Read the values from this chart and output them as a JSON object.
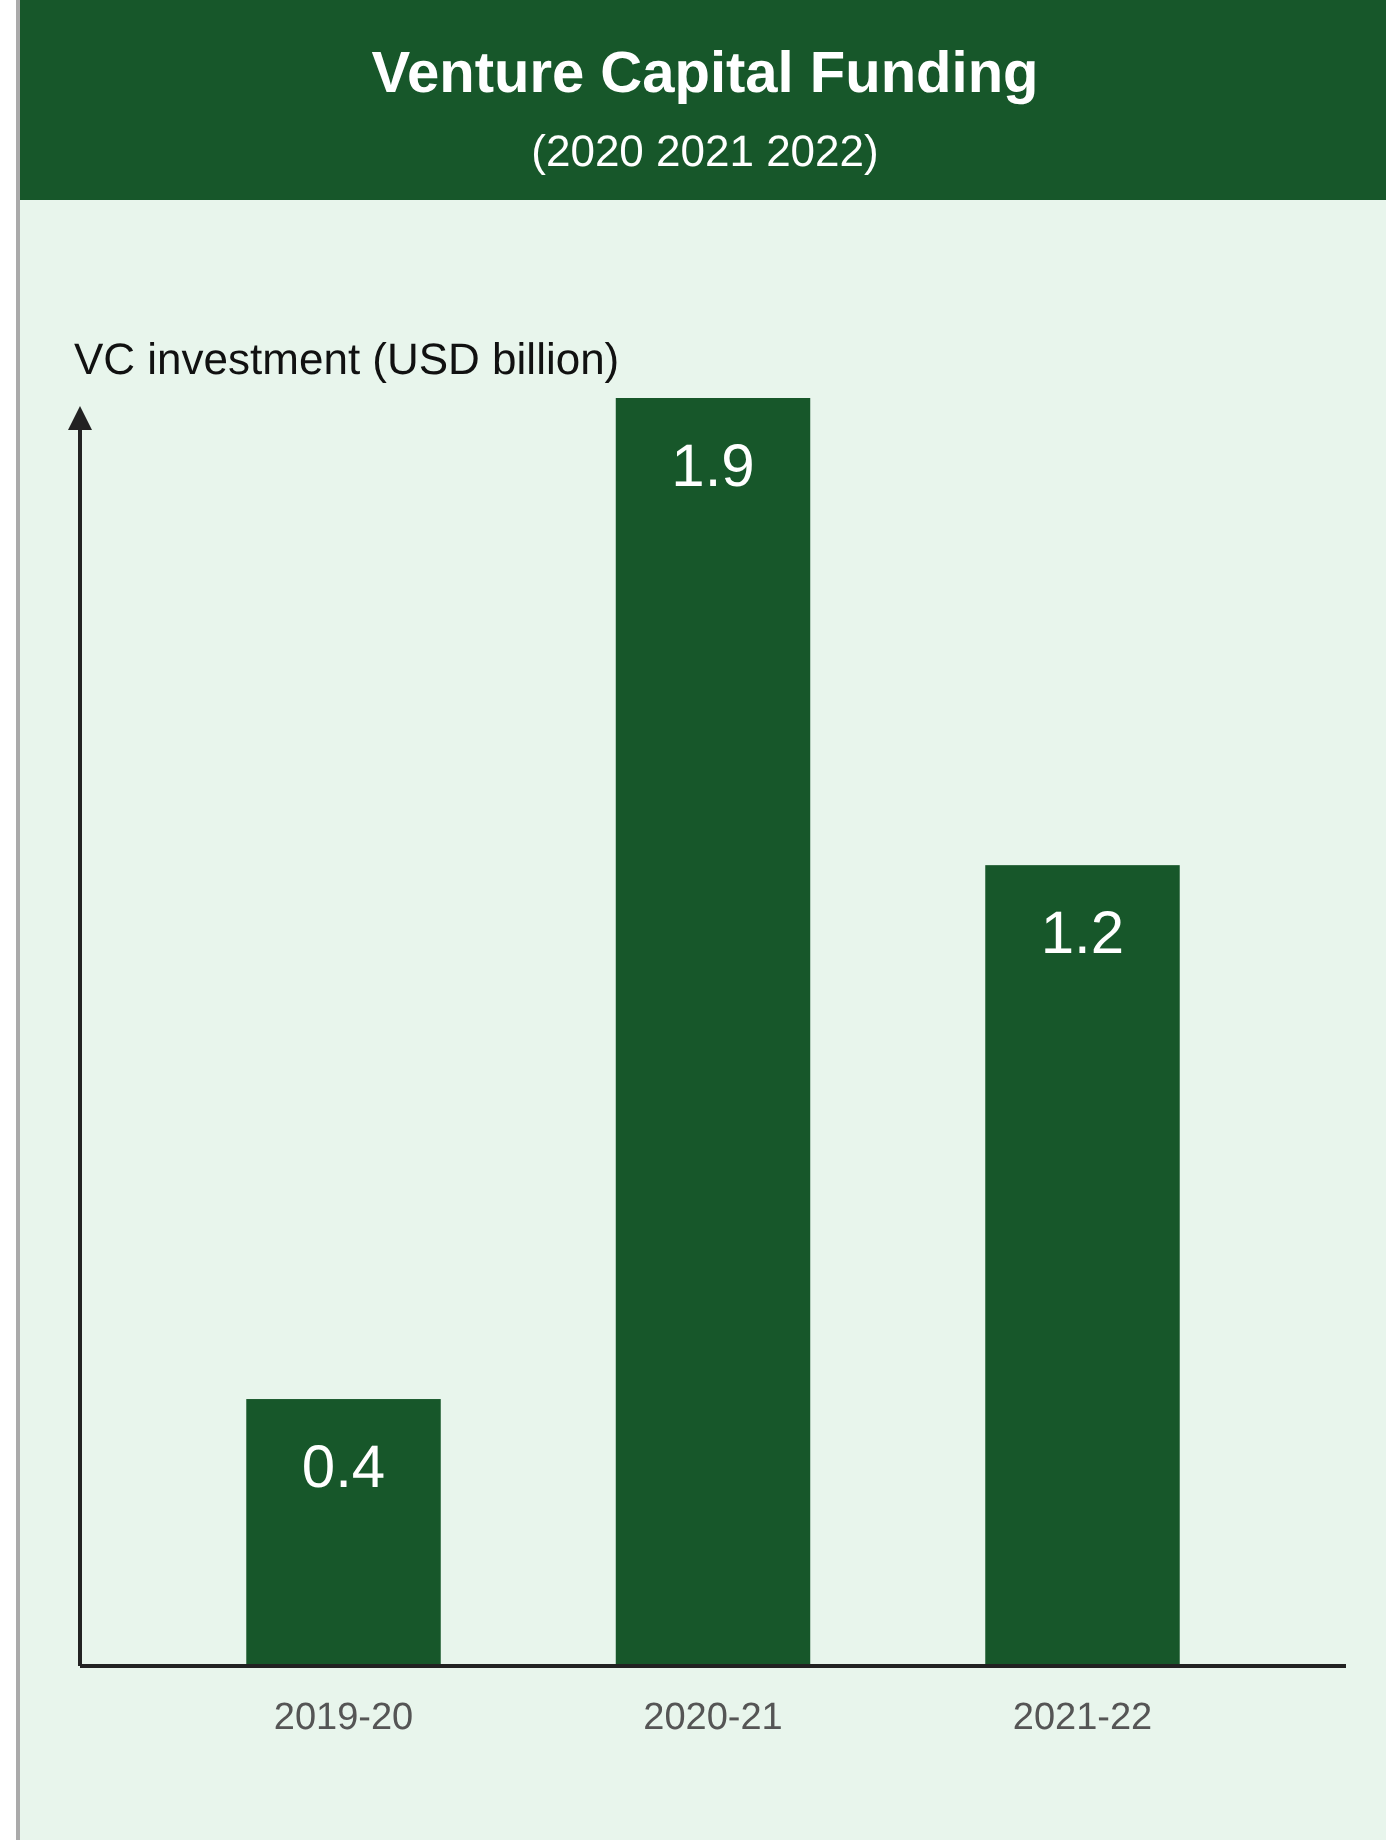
{
  "chart_data": {
    "type": "bar",
    "title": "Venture Capital Funding",
    "subtitle": "(2020 2021 2022)",
    "ylabel": "VC investment (USD billion)",
    "categories": [
      "2019-20",
      "2020-21",
      "2021-22"
    ],
    "values": [
      0.4,
      1.9,
      1.2
    ],
    "color": "#17572a",
    "ylim": [
      0,
      1.9
    ],
    "data_labels": true
  }
}
